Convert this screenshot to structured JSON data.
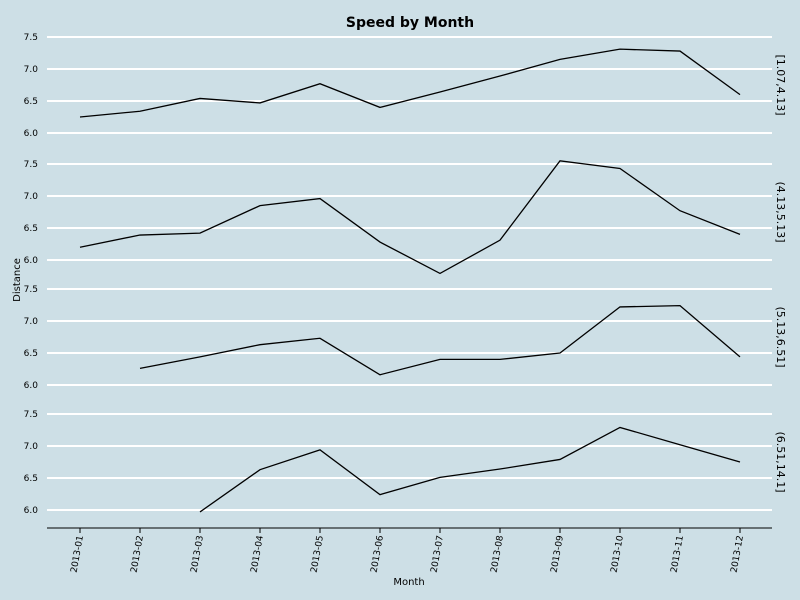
{
  "chart_data": {
    "type": "line",
    "title": "Speed by Month",
    "xlabel": "Month",
    "ylabel": "Distance",
    "categories": [
      "2013-01",
      "2013-02",
      "2013-03",
      "2013-04",
      "2013-05",
      "2013-06",
      "2013-07",
      "2013-08",
      "2013-09",
      "2013-10",
      "2013-11",
      "2013-12"
    ],
    "y_ticks": [
      "6.0",
      "6.5",
      "7.0",
      "7.5"
    ],
    "ylim": [
      5.95,
      7.55
    ],
    "grid": true,
    "colors": {
      "background": "#cddfe6",
      "grid": "#ffffff",
      "line": "#000000"
    },
    "panels": [
      {
        "name": "[1.07,4.13]",
        "values": [
          6.25,
          6.34,
          6.54,
          6.47,
          6.77,
          6.4,
          6.64,
          6.89,
          7.15,
          7.31,
          7.28,
          6.6
        ]
      },
      {
        "name": "(4.13,5.13]",
        "values": [
          6.2,
          6.39,
          6.42,
          6.85,
          6.96,
          6.28,
          5.79,
          6.31,
          7.55,
          7.43,
          6.77,
          6.4
        ]
      },
      {
        "name": "(5.13,6.51]",
        "values": [
          null,
          6.26,
          6.44,
          6.63,
          6.73,
          6.16,
          6.4,
          6.4,
          6.5,
          7.22,
          7.24,
          6.44
        ]
      },
      {
        "name": "(6.51,14.1]",
        "values": [
          null,
          null,
          5.97,
          6.63,
          6.94,
          6.24,
          6.51,
          6.64,
          6.79,
          7.29,
          7.02,
          6.75
        ]
      }
    ]
  }
}
